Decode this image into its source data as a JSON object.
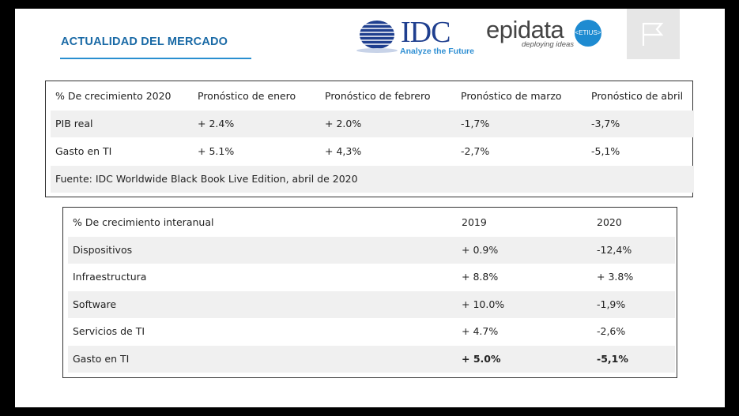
{
  "header": {
    "title": "ACTUALIDAD DEL MERCADO",
    "idc_logo_text": "IDC",
    "idc_tagline": "Analyze the Future",
    "epidata_logo_text": "epidata",
    "epidata_badge": "<ETIUS>",
    "epidata_tagline": "deploying ideas",
    "flag_icon": "flag-icon"
  },
  "forecast_table": {
    "headers": [
      "% De crecimiento 2020",
      "Pronóstico de enero",
      "Pronóstico de febrero",
      "Pronóstico de marzo",
      "Pronóstico de abril"
    ],
    "rows": [
      [
        "PIB real",
        "+ 2.4%",
        "+ 2.0%",
        "-1,7%",
        "-3,7%"
      ],
      [
        "Gasto en TI",
        "+ 5.1%",
        "+ 4,3%",
        "-2,7%",
        "-5,1%"
      ]
    ],
    "source": "Fuente: IDC Worldwide Black Book Live Edition, abril de 2020"
  },
  "yearly_table": {
    "headers": [
      "% De crecimiento interanual",
      "2019",
      "2020"
    ],
    "rows": [
      [
        "Dispositivos",
        "+ 0.9%",
        "-12,4%"
      ],
      [
        "Infraestructura",
        "+ 8.8%",
        "+ 3.8%"
      ],
      [
        "Software",
        "+ 10.0%",
        "-1,9%"
      ],
      [
        "Servicios de TI",
        "+ 4.7%",
        "-2,6%"
      ],
      [
        "Gasto en TI",
        "+ 5.0%",
        "-5,1%"
      ]
    ]
  }
}
